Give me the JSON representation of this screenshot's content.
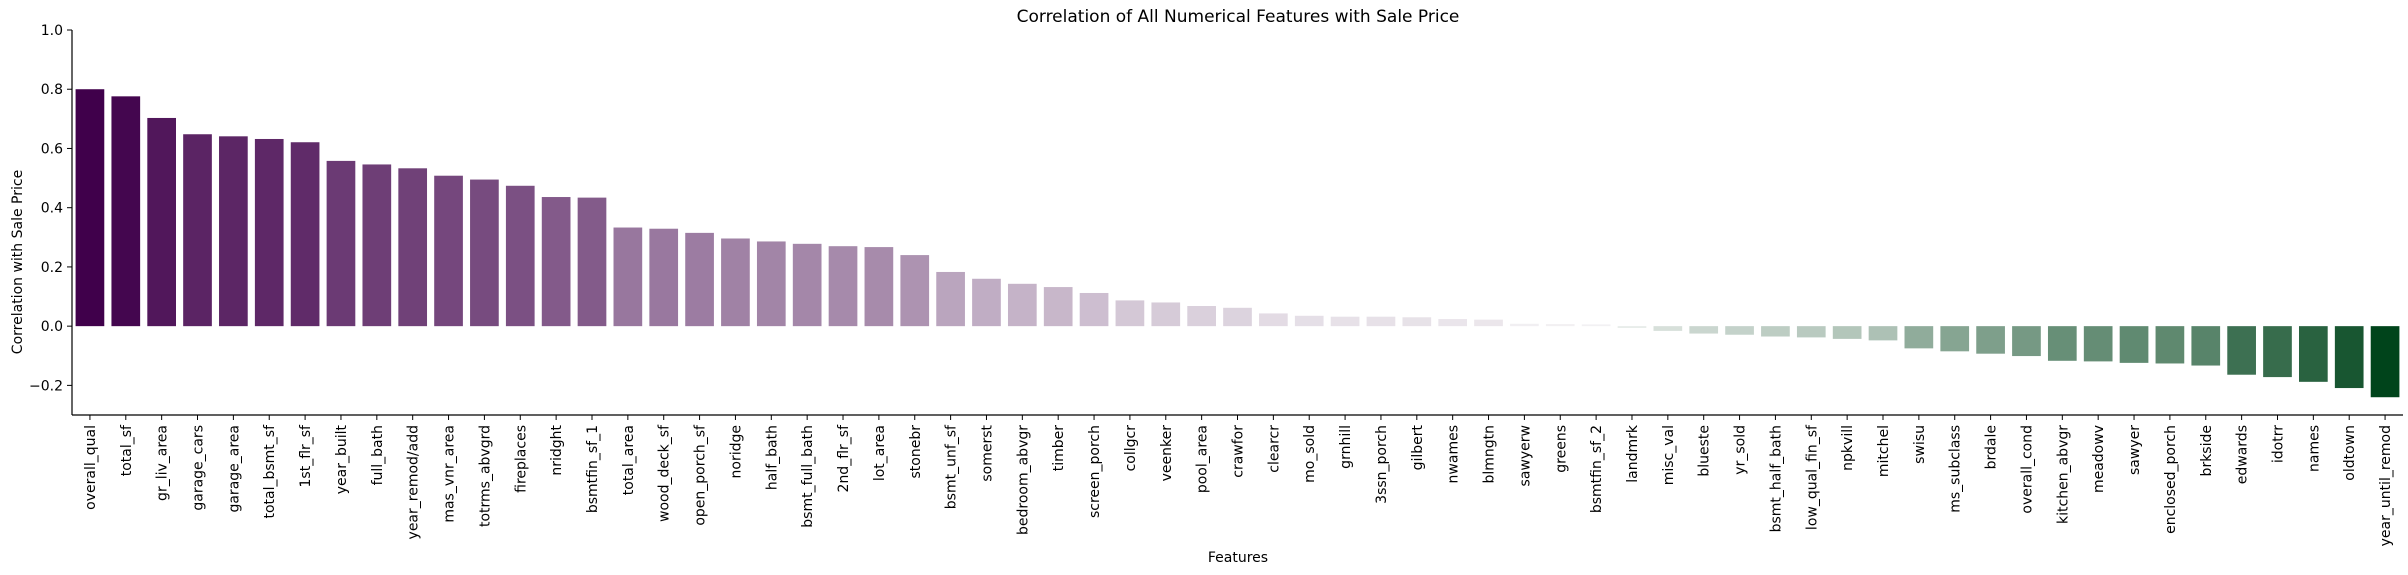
{
  "chart_data": {
    "type": "bar",
    "title": "Correlation of All Numerical Features with Sale Price",
    "xlabel": "Features",
    "ylabel": "Correlation with Sale Price",
    "ylim": [
      -0.3,
      1.0
    ],
    "yticks": [
      -0.2,
      0.0,
      0.2,
      0.4,
      0.6,
      0.8,
      1.0
    ],
    "ytick_labels": [
      "−0.2",
      "0.0",
      "0.2",
      "0.4",
      "0.6",
      "0.8",
      "1.0"
    ],
    "grid": false,
    "legend": "none",
    "color_scale": {
      "positive_max": "#40004b",
      "zero": "#f7f7f7",
      "negative_max": "#00441b"
    },
    "categories": [
      "overall_qual",
      "total_sf",
      "gr_liv_area",
      "garage_cars",
      "garage_area",
      "total_bsmt_sf",
      "1st_flr_sf",
      "year_built",
      "full_bath",
      "year_remod/add",
      "mas_vnr_area",
      "totrms_abvgrd",
      "fireplaces",
      "nridght",
      "bsmtfin_sf_1",
      "total_area",
      "wood_deck_sf",
      "open_porch_sf",
      "noridge",
      "half_bath",
      "bsmt_full_bath",
      "2nd_flr_sf",
      "lot_area",
      "stonebr",
      "bsmt_unf_sf",
      "somerst",
      "bedroom_abvgr",
      "timber",
      "screen_porch",
      "collgcr",
      "veenker",
      "pool_area",
      "crawfor",
      "clearcr",
      "mo_sold",
      "grnhill",
      "3ssn_porch",
      "gilbert",
      "nwames",
      "blmngtn",
      "sawyerw",
      "greens",
      "bsmtfin_sf_2",
      "landmrk",
      "misc_val",
      "blueste",
      "yr_sold",
      "bsmt_half_bath",
      "low_qual_fin_sf",
      "npkvill",
      "mitchel",
      "swisu",
      "ms_subclass",
      "brdale",
      "overall_cond",
      "kitchen_abvgr",
      "meadowv",
      "sawyer",
      "enclosed_porch",
      "brkside",
      "edwards",
      "idotrr",
      "names",
      "oldtown",
      "year_until_remod"
    ],
    "values": [
      0.8,
      0.776,
      0.703,
      0.648,
      0.641,
      0.632,
      0.621,
      0.558,
      0.546,
      0.533,
      0.508,
      0.495,
      0.474,
      0.436,
      0.434,
      0.333,
      0.329,
      0.315,
      0.296,
      0.286,
      0.278,
      0.27,
      0.267,
      0.24,
      0.183,
      0.16,
      0.143,
      0.132,
      0.112,
      0.087,
      0.08,
      0.068,
      0.062,
      0.043,
      0.035,
      0.032,
      0.032,
      0.03,
      0.024,
      0.022,
      0.008,
      0.007,
      0.006,
      -0.006,
      -0.016,
      -0.025,
      -0.029,
      -0.035,
      -0.038,
      -0.043,
      -0.048,
      -0.075,
      -0.085,
      -0.093,
      -0.101,
      -0.117,
      -0.119,
      -0.124,
      -0.126,
      -0.133,
      -0.164,
      -0.172,
      -0.188,
      -0.209,
      -0.24
    ]
  }
}
